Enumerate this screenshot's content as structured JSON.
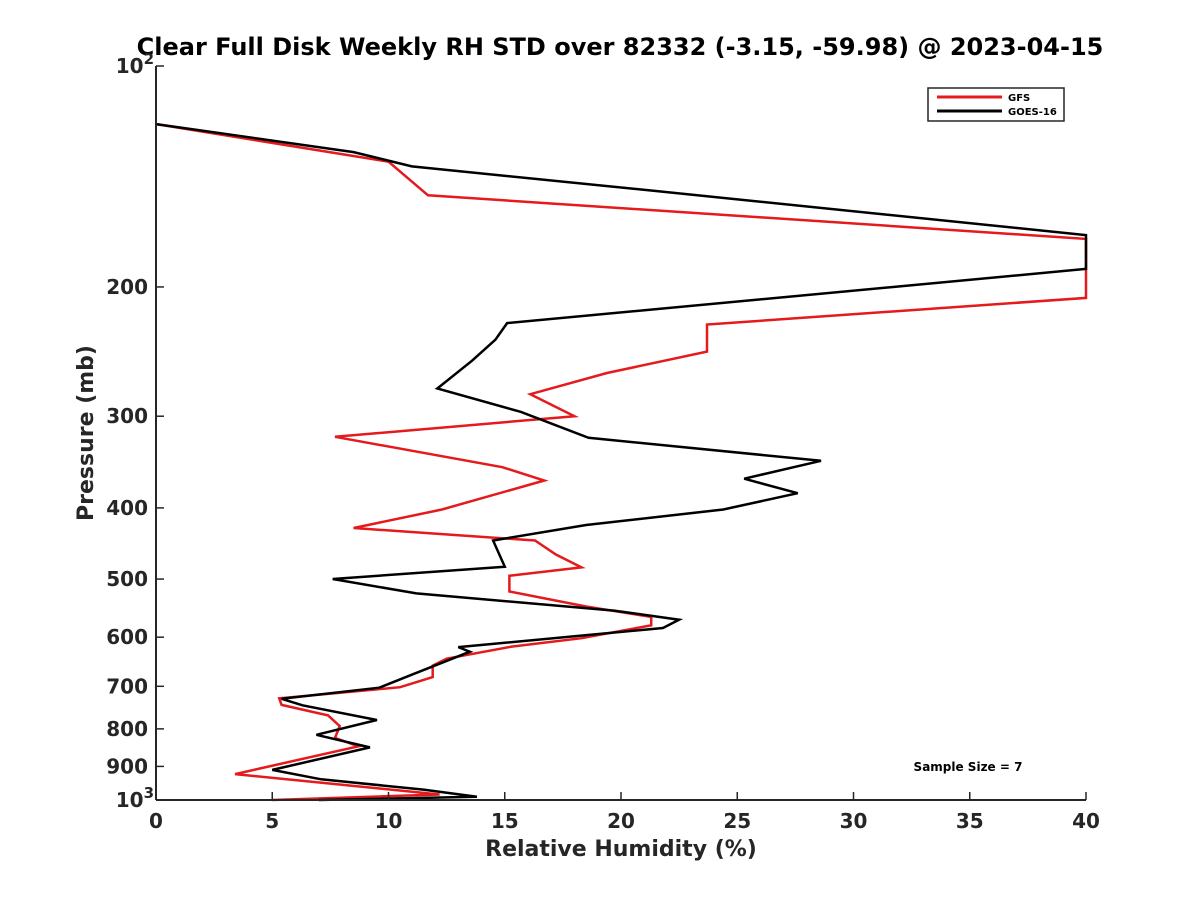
{
  "chart_data": {
    "type": "line",
    "title": "Clear Full Disk Weekly RH STD over 82332 (-3.15, -59.98) @ 2023-04-15",
    "xlabel": "Relative Humidity (%)",
    "ylabel": "Pressure (mb)",
    "xlim": [
      0,
      40
    ],
    "ylim": [
      100,
      1000
    ],
    "yscale": "log",
    "yreversed": true,
    "grid": false,
    "legend_position": "top-right",
    "x_ticks": [
      0,
      5,
      10,
      15,
      20,
      25,
      30,
      35,
      40
    ],
    "y_ticks": [
      {
        "value": 100,
        "label": "10",
        "sup": "2"
      },
      {
        "value": 200,
        "label": "200"
      },
      {
        "value": 300,
        "label": "300"
      },
      {
        "value": 400,
        "label": "400"
      },
      {
        "value": 500,
        "label": "500"
      },
      {
        "value": 600,
        "label": "600"
      },
      {
        "value": 700,
        "label": "700"
      },
      {
        "value": 800,
        "label": "800"
      },
      {
        "value": 900,
        "label": "900"
      },
      {
        "value": 1000,
        "label": "10",
        "sup": "3"
      }
    ],
    "annotation": "Sample Size = 7",
    "series": [
      {
        "name": "GFS",
        "color": "#e41a1c",
        "points": [
          [
            0,
            120
          ],
          [
            10,
            135
          ],
          [
            11.7,
            150
          ],
          [
            40,
            172
          ],
          [
            40,
            205
          ],
          [
            40,
            207
          ],
          [
            23.7,
            225
          ],
          [
            23.7,
            245
          ],
          [
            19.4,
            262
          ],
          [
            16.1,
            280
          ],
          [
            18,
            300
          ],
          [
            7.7,
            320
          ],
          [
            14.9,
            352
          ],
          [
            16.7,
            367
          ],
          [
            12.3,
            402
          ],
          [
            8.5,
            426
          ],
          [
            16.3,
            443
          ],
          [
            17.2,
            463
          ],
          [
            18.3,
            482
          ],
          [
            15.2,
            495
          ],
          [
            15.2,
            520
          ],
          [
            18.5,
            545
          ],
          [
            21.3,
            563
          ],
          [
            21.3,
            578
          ],
          [
            18.3,
            602
          ],
          [
            15.3,
            618
          ],
          [
            12.5,
            642
          ],
          [
            11.9,
            656
          ],
          [
            11.9,
            680
          ],
          [
            10.5,
            702
          ],
          [
            5.3,
            727
          ],
          [
            5.4,
            742
          ],
          [
            7.4,
            767
          ],
          [
            7.9,
            793
          ],
          [
            7.7,
            823
          ],
          [
            8.7,
            845
          ],
          [
            3.4,
            922
          ],
          [
            12.2,
            983
          ],
          [
            5,
            1000
          ]
        ]
      },
      {
        "name": "GOES-16",
        "color": "#000000",
        "points": [
          [
            0,
            120
          ],
          [
            8.5,
            131
          ],
          [
            11,
            137
          ],
          [
            21.5,
            148
          ],
          [
            40,
            170
          ],
          [
            40,
            189
          ],
          [
            40,
            189
          ],
          [
            15.1,
            224
          ],
          [
            14.6,
            236
          ],
          [
            13.6,
            252
          ],
          [
            12.1,
            275
          ],
          [
            15.7,
            296
          ],
          [
            18.6,
            321
          ],
          [
            28.6,
            345
          ],
          [
            25.3,
            365
          ],
          [
            27.6,
            382
          ],
          [
            24.4,
            402
          ],
          [
            18.5,
            422
          ],
          [
            14.5,
            443
          ],
          [
            15,
            481
          ],
          [
            7.6,
            500
          ],
          [
            11.2,
            523
          ],
          [
            19.7,
            552
          ],
          [
            22.5,
            568
          ],
          [
            21.8,
            583
          ],
          [
            13,
            619
          ],
          [
            13.5,
            628
          ],
          [
            11,
            675
          ],
          [
            9.6,
            703
          ],
          [
            5.4,
            728
          ],
          [
            6.3,
            743
          ],
          [
            9.5,
            778
          ],
          [
            6.9,
            815
          ],
          [
            9.2,
            848
          ],
          [
            5,
            910
          ],
          [
            7.1,
            937
          ],
          [
            11.5,
            968
          ],
          [
            13.8,
            990
          ],
          [
            7,
            1000
          ]
        ]
      }
    ]
  }
}
